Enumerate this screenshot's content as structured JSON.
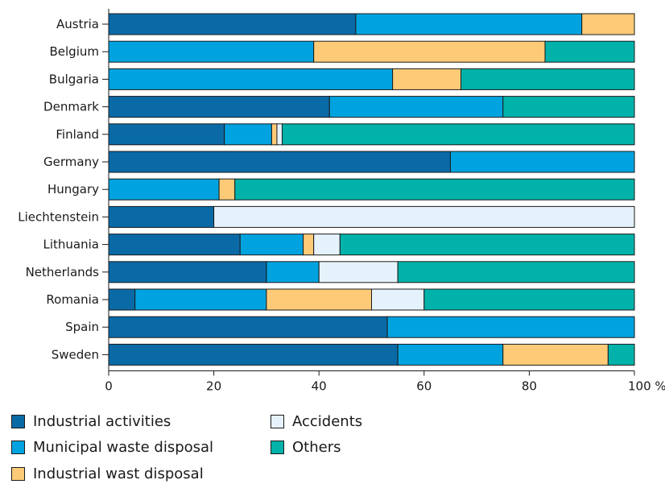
{
  "chart_data": {
    "type": "bar",
    "orientation": "horizontal",
    "stacked": true,
    "categories": [
      "Austria",
      "Belgium",
      "Bulgaria",
      "Denmark",
      "Finland",
      "Germany",
      "Hungary",
      "Liechtenstein",
      "Lithuania",
      "Netherlands",
      "Romania",
      "Spain",
      "Sweden"
    ],
    "series": [
      {
        "name": "Industrial activities",
        "color": "#0a6aa6",
        "values": [
          47,
          0,
          0,
          42,
          22,
          65,
          0,
          20,
          25,
          30,
          5,
          53,
          55
        ]
      },
      {
        "name": "Municipal waste disposal",
        "color": "#00a3df",
        "values": [
          43,
          39,
          54,
          33,
          9,
          35,
          21,
          0,
          12,
          10,
          25,
          47,
          20
        ]
      },
      {
        "name": "Industrial wast disposal",
        "color": "#fdcb78",
        "values": [
          10,
          44,
          13,
          0,
          1,
          0,
          3,
          0,
          2,
          0,
          20,
          0,
          20
        ]
      },
      {
        "name": "Accidents",
        "color": "#e6f2fb",
        "values": [
          0,
          0,
          0,
          0,
          1,
          0,
          0,
          80,
          5,
          15,
          10,
          0,
          0
        ]
      },
      {
        "name": "Others",
        "color": "#00b2a9",
        "values": [
          0,
          17,
          33,
          25,
          67,
          0,
          76,
          0,
          56,
          45,
          40,
          0,
          5
        ]
      }
    ],
    "xlim": [
      0,
      100
    ],
    "x_ticks": [
      "0",
      "20",
      "40",
      "60",
      "80",
      "100 %"
    ],
    "x_tick_values": [
      0,
      20,
      40,
      60,
      80,
      100
    ],
    "legend_position": "bottom",
    "grid": false
  },
  "legend": {
    "items": [
      {
        "label": "Industrial activities",
        "color": "#0a6aa6"
      },
      {
        "label": "Accidents",
        "color": "#e6f2fb"
      },
      {
        "label": "Municipal waste disposal",
        "color": "#00a3df"
      },
      {
        "label": "Others",
        "color": "#00b2a9"
      },
      {
        "label": "Industrial wast disposal",
        "color": "#fdcb78"
      }
    ]
  }
}
